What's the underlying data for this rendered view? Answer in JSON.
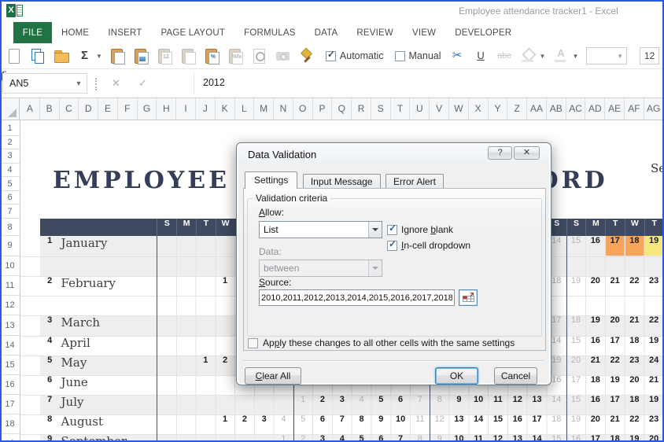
{
  "window": {
    "title": "Employee attendance tracker1 - Excel",
    "frame_color": "#2d59e2"
  },
  "ribbon": {
    "tabs": [
      {
        "label": "FILE",
        "active": true
      },
      {
        "label": "HOME"
      },
      {
        "label": "INSERT"
      },
      {
        "label": "PAGE LAYOUT"
      },
      {
        "label": "FORMULAS"
      },
      {
        "label": "DATA"
      },
      {
        "label": "REVIEW"
      },
      {
        "label": "VIEW"
      },
      {
        "label": "DEVELOPER"
      }
    ],
    "toolbar": {
      "items_left": [
        {
          "name": "new-document"
        },
        {
          "name": "copy"
        },
        {
          "name": "open-folder"
        },
        {
          "name": "autosum",
          "glyph": "Σ",
          "dropdown": true
        },
        {
          "name": "paste"
        },
        {
          "name": "paste-picture"
        },
        {
          "name": "paste-values",
          "glyph": "12",
          "disabled": true
        },
        {
          "name": "paste-link",
          "disabled": true
        },
        {
          "name": "paste-special",
          "glyph": "%"
        },
        {
          "name": "paste-formulas",
          "glyph": "%fx",
          "disabled": true
        },
        {
          "name": "print-preview",
          "disabled": true
        },
        {
          "name": "camera",
          "disabled": true
        },
        {
          "name": "format-painter"
        }
      ],
      "automatic_label": "Automatic",
      "manual_label": "Manual",
      "items_right": [
        {
          "name": "cut",
          "glyph": "✂"
        },
        {
          "name": "underline",
          "glyph": "U"
        },
        {
          "name": "strikethrough",
          "glyph": "abc",
          "disabled": true
        },
        {
          "name": "fill-color",
          "dropdown": true,
          "disabled": true
        },
        {
          "name": "font-color",
          "glyph": "A",
          "dropdown": true,
          "disabled": true
        }
      ],
      "font_size_value": "12"
    }
  },
  "formula_bar": {
    "name_box": "AN5",
    "value": "2012",
    "fx_label": "fx"
  },
  "sheet": {
    "columns": [
      "A",
      "B",
      "C",
      "D",
      "E",
      "F",
      "G",
      "H",
      "I",
      "J",
      "K",
      "L",
      "M",
      "N",
      "O",
      "P",
      "Q",
      "R",
      "S",
      "T",
      "U",
      "V",
      "W",
      "X",
      "Y",
      "Z",
      "AA",
      "AB",
      "AC",
      "AD",
      "AE",
      "AF",
      "AG"
    ],
    "row_headers": [
      "1",
      "2",
      "3",
      "4",
      "5",
      "6",
      "7",
      "8",
      "9",
      "10",
      "11",
      "12",
      "13",
      "14",
      "15",
      "16",
      "17",
      "18",
      "19"
    ],
    "title": "EMPLOYEE ATTENDANCE RECORD",
    "partial_text_right": "Se",
    "colors": {
      "band": "#3f4a60",
      "week_line": "#47526d",
      "gray_row": "#eeeeee",
      "orange": "#f8a45a",
      "yellow": "#f7e87e"
    },
    "day_headers": [
      {
        "c": "H",
        "t": "S"
      },
      {
        "c": "I",
        "t": "M"
      },
      {
        "c": "J",
        "t": "T"
      },
      {
        "c": "K",
        "t": "W"
      },
      {
        "c": "AB",
        "t": "S"
      },
      {
        "c": "AC",
        "t": "S"
      },
      {
        "c": "AD",
        "t": "M"
      },
      {
        "c": "AE",
        "t": "T"
      },
      {
        "c": "AF",
        "t": "W"
      },
      {
        "c": "AG",
        "t": "T"
      }
    ],
    "months": [
      {
        "row": "1",
        "name": "January",
        "shade": "gray",
        "days": [
          {
            "c": "AB",
            "v": "14",
            "dim": true
          },
          {
            "c": "AC",
            "v": "15",
            "dim": true
          },
          {
            "c": "AD",
            "v": "16"
          },
          {
            "c": "AE",
            "v": "17",
            "hl": "orange"
          },
          {
            "c": "AF",
            "v": "18",
            "hl": "orange"
          },
          {
            "c": "AG",
            "v": "19",
            "hl": "yellow"
          }
        ]
      },
      {
        "row": "2",
        "name": "February",
        "shade": "white",
        "days": [
          {
            "c": "K",
            "v": "1"
          },
          {
            "c": "AB",
            "v": "18",
            "dim": true
          },
          {
            "c": "AC",
            "v": "19",
            "dim": true
          },
          {
            "c": "AD",
            "v": "20"
          },
          {
            "c": "AE",
            "v": "21"
          },
          {
            "c": "AF",
            "v": "22"
          },
          {
            "c": "AG",
            "v": "23"
          }
        ]
      },
      {
        "row": "3",
        "name": "March",
        "shade": "gray",
        "days": [
          {
            "c": "AB",
            "v": "17",
            "dim": true
          },
          {
            "c": "AC",
            "v": "18",
            "dim": true
          },
          {
            "c": "AD",
            "v": "19"
          },
          {
            "c": "AE",
            "v": "20"
          },
          {
            "c": "AF",
            "v": "21"
          },
          {
            "c": "AG",
            "v": "22"
          }
        ]
      },
      {
        "row": "4",
        "name": "April",
        "shade": "white",
        "days": [
          {
            "c": "AB",
            "v": "14",
            "dim": true
          },
          {
            "c": "AC",
            "v": "15",
            "dim": true
          },
          {
            "c": "AD",
            "v": "16"
          },
          {
            "c": "AE",
            "v": "17"
          },
          {
            "c": "AF",
            "v": "18"
          },
          {
            "c": "AG",
            "v": "19"
          }
        ]
      },
      {
        "row": "5",
        "name": "May",
        "shade": "gray",
        "days": [
          {
            "c": "J",
            "v": "1"
          },
          {
            "c": "K",
            "v": "2"
          },
          {
            "c": "AB",
            "v": "19",
            "dim": true
          },
          {
            "c": "AC",
            "v": "20",
            "dim": true
          },
          {
            "c": "AD",
            "v": "21"
          },
          {
            "c": "AE",
            "v": "22"
          },
          {
            "c": "AF",
            "v": "23"
          },
          {
            "c": "AG",
            "v": "24"
          }
        ]
      },
      {
        "row": "6",
        "name": "June",
        "shade": "white",
        "days": [
          {
            "c": "AB",
            "v": "16",
            "dim": true
          },
          {
            "c": "AC",
            "v": "17",
            "dim": true
          },
          {
            "c": "AD",
            "v": "18"
          },
          {
            "c": "AE",
            "v": "19"
          },
          {
            "c": "AF",
            "v": "20"
          },
          {
            "c": "AG",
            "v": "21"
          }
        ]
      },
      {
        "row": "7",
        "name": "July",
        "shade": "gray",
        "days": [
          {
            "c": "O",
            "v": "1",
            "dim": true
          },
          {
            "c": "P",
            "v": "2"
          },
          {
            "c": "Q",
            "v": "3"
          },
          {
            "c": "R",
            "v": "4",
            "dim": true
          },
          {
            "c": "S",
            "v": "5"
          },
          {
            "c": "T",
            "v": "6"
          },
          {
            "c": "U",
            "v": "7",
            "dim": true
          },
          {
            "c": "V",
            "v": "8",
            "dim": true
          },
          {
            "c": "W",
            "v": "9"
          },
          {
            "c": "X",
            "v": "10"
          },
          {
            "c": "Y",
            "v": "11"
          },
          {
            "c": "Z",
            "v": "12"
          },
          {
            "c": "AA",
            "v": "13"
          },
          {
            "c": "AB",
            "v": "14",
            "dim": true
          },
          {
            "c": "AC",
            "v": "15",
            "dim": true
          },
          {
            "c": "AD",
            "v": "16"
          },
          {
            "c": "AE",
            "v": "17"
          },
          {
            "c": "AF",
            "v": "18"
          },
          {
            "c": "AG",
            "v": "19"
          }
        ]
      },
      {
        "row": "8",
        "name": "August",
        "shade": "white",
        "days": [
          {
            "c": "K",
            "v": "1"
          },
          {
            "c": "L",
            "v": "2"
          },
          {
            "c": "M",
            "v": "3"
          },
          {
            "c": "N",
            "v": "4",
            "dim": true
          },
          {
            "c": "O",
            "v": "5",
            "dim": true
          },
          {
            "c": "P",
            "v": "6"
          },
          {
            "c": "Q",
            "v": "7"
          },
          {
            "c": "R",
            "v": "8"
          },
          {
            "c": "S",
            "v": "9"
          },
          {
            "c": "T",
            "v": "10"
          },
          {
            "c": "U",
            "v": "11",
            "dim": true
          },
          {
            "c": "V",
            "v": "12",
            "dim": true
          },
          {
            "c": "W",
            "v": "13"
          },
          {
            "c": "X",
            "v": "14"
          },
          {
            "c": "Y",
            "v": "15"
          },
          {
            "c": "Z",
            "v": "16"
          },
          {
            "c": "AA",
            "v": "17"
          },
          {
            "c": "AB",
            "v": "18",
            "dim": true
          },
          {
            "c": "AC",
            "v": "19",
            "dim": true
          },
          {
            "c": "AD",
            "v": "20"
          },
          {
            "c": "AE",
            "v": "21"
          },
          {
            "c": "AF",
            "v": "22"
          },
          {
            "c": "AG",
            "v": "23"
          }
        ]
      },
      {
        "row": "9",
        "name": "September",
        "shade": "gray",
        "days": [
          {
            "c": "N",
            "v": "1",
            "dim": true
          },
          {
            "c": "O",
            "v": "2",
            "dim": true
          },
          {
            "c": "P",
            "v": "3"
          },
          {
            "c": "Q",
            "v": "4"
          },
          {
            "c": "R",
            "v": "5"
          },
          {
            "c": "S",
            "v": "6"
          },
          {
            "c": "T",
            "v": "7"
          },
          {
            "c": "U",
            "v": "8",
            "dim": true
          },
          {
            "c": "V",
            "v": "9",
            "dim": true
          },
          {
            "c": "W",
            "v": "10"
          },
          {
            "c": "X",
            "v": "11"
          },
          {
            "c": "Y",
            "v": "12"
          },
          {
            "c": "Z",
            "v": "13"
          },
          {
            "c": "AA",
            "v": "14"
          },
          {
            "c": "AB",
            "v": "15",
            "dim": true
          },
          {
            "c": "AC",
            "v": "16",
            "dim": true
          },
          {
            "c": "AD",
            "v": "17"
          },
          {
            "c": "AE",
            "v": "18"
          },
          {
            "c": "AF",
            "v": "19"
          },
          {
            "c": "AG",
            "v": "20"
          }
        ]
      }
    ]
  },
  "dialog": {
    "title": "Data Validation",
    "help_glyph": "?",
    "close_glyph": "✕",
    "tabs": [
      {
        "label": "Settings",
        "active": true
      },
      {
        "label": "Input Message"
      },
      {
        "label": "Error Alert"
      }
    ],
    "group_label": "Validation criteria",
    "allow_label": "Allow:",
    "allow_value": "List",
    "ignore_blank_label": "Ignore blank",
    "in_cell_label": "In-cell dropdown",
    "data_label": "Data:",
    "data_value": "between",
    "source_label": "Source:",
    "source_value": "2010,2011,2012,2013,2014,2015,2016,2017,2018,",
    "apply_label": "Apply these changes to all other cells with the same settings",
    "clear_label": "Clear All",
    "ok_label": "OK",
    "cancel_label": "Cancel"
  }
}
